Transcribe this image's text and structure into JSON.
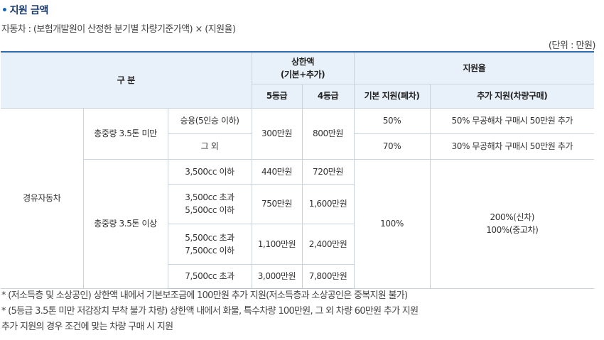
{
  "heading": {
    "bullet": "•",
    "title": "지원 금액"
  },
  "formula": "자동차 : (보험개발원이 산정한 분기별 차량기준가액) × (지원율)",
  "unit": "(단위 : 만원)",
  "table": {
    "header": {
      "category": "구 분",
      "cap_line1": "상한액",
      "cap_line2": "(기본+추가)",
      "rate": "지원율",
      "grade5": "5등급",
      "grade4": "4등급",
      "basic_rate": "기본 지원(폐차)",
      "extra_rate": "추가 지원(차량구매)"
    },
    "body": {
      "vehicle_type": "경유자동차",
      "under": {
        "label": "총중량 3.5톤 미만",
        "cap5": "300만원",
        "cap4": "800만원",
        "rows": [
          {
            "sub": "승용(5인승 이하)",
            "basic": "50%",
            "extra": "50% 무공해차 구매시 50만원 추가"
          },
          {
            "sub": "그 외",
            "basic": "70%",
            "extra": "30% 무공해차 구매시 50만원 추가"
          }
        ]
      },
      "over": {
        "label": "총중량 3.5톤 이상",
        "basic": "100%",
        "extra_line1": "200%(신차)",
        "extra_line2": "100%(중고차)",
        "rows": [
          {
            "sub_line1": "3,500cc 이하",
            "sub_line2": "",
            "cap5": "440만원",
            "cap4": "720만원"
          },
          {
            "sub_line1": "3,500cc 초과",
            "sub_line2": "5,500cc 이하",
            "cap5": "750만원",
            "cap4": "1,600만원"
          },
          {
            "sub_line1": "5,500cc 초과",
            "sub_line2": "7,500cc 이하",
            "cap5": "1,100만원",
            "cap4": "2,400만원"
          },
          {
            "sub_line1": "7,500cc 초과",
            "sub_line2": "",
            "cap5": "3,000만원",
            "cap4": "7,800만원"
          }
        ]
      }
    }
  },
  "notes": [
    "* (저소득층 및 소상공인) 상한액 내에서 기본보조금에 100만원 추가 지원(저소득층과 소상공인은 중복지원 불가)",
    "* (5등급 3.5톤 미만 저감장치 부착 불가 차량) 상한액 내에서 화물, 특수차량 100만원, 그 외 차량 60만원 추가 지원",
    "추가 지원의 경우 조건에 맞는 차량 구매 시 지원"
  ]
}
